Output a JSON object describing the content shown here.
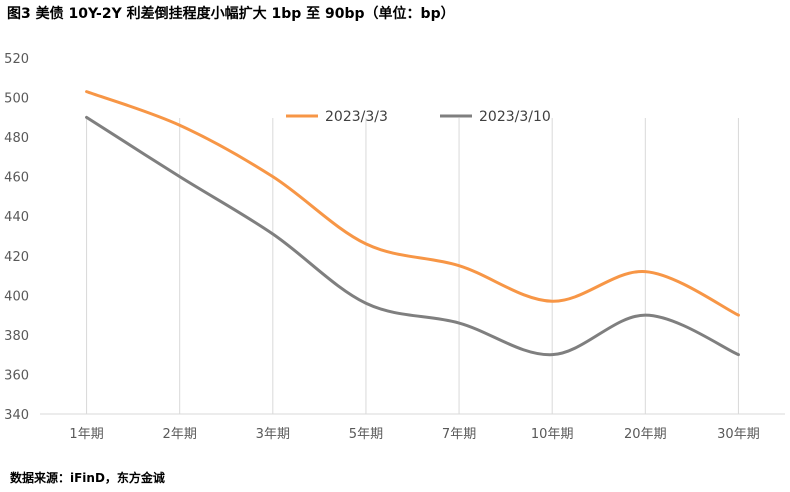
{
  "figure": {
    "title": "图3  美债 10Y-2Y 利差倒挂程度小幅扩大 1bp 至 90bp（单位：bp）",
    "source": "数据来源：iFinD，东方金诚"
  },
  "chart_data": {
    "type": "line",
    "categories": [
      "1年期",
      "2年期",
      "3年期",
      "5年期",
      "7年期",
      "10年期",
      "20年期",
      "30年期"
    ],
    "series": [
      {
        "name": "2023/3/3",
        "color": "#F79646",
        "values": [
          503,
          486,
          460,
          426,
          415,
          397,
          412,
          390
        ]
      },
      {
        "name": "2023/3/10",
        "color": "#7F7F7F",
        "values": [
          490,
          460,
          431,
          396,
          386,
          370,
          390,
          370
        ]
      }
    ],
    "ylim": [
      340,
      520
    ],
    "yticks": [
      340,
      360,
      380,
      400,
      420,
      440,
      460,
      480,
      500,
      520
    ],
    "grid": "vertical",
    "legend": "top-center",
    "xlabel": "",
    "ylabel": ""
  }
}
